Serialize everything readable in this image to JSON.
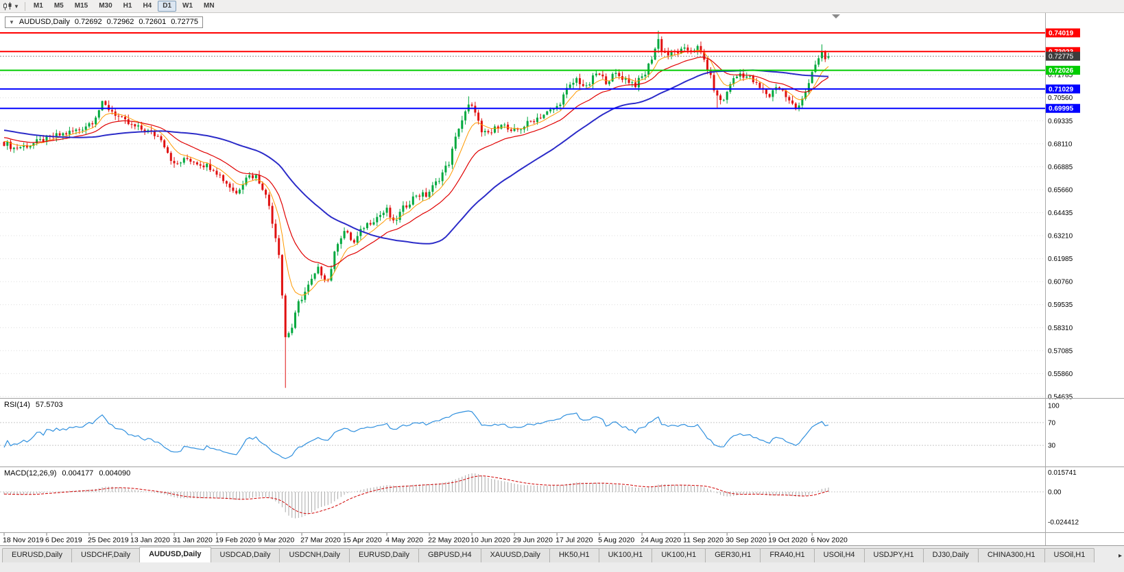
{
  "toolbar": {
    "timeframes": [
      "M1",
      "M5",
      "M15",
      "M30",
      "H1",
      "H4",
      "D1",
      "W1",
      "MN"
    ],
    "active_timeframe": "D1"
  },
  "chart_header": {
    "collapse_icon": "▼",
    "symbol": "AUDUSD,Daily",
    "open": "0.72692",
    "high": "0.72962",
    "low": "0.72601",
    "close": "0.72775"
  },
  "indicators": {
    "rsi": {
      "name": "RSI(14)",
      "value": "57.5703",
      "axis_values": [
        100,
        70,
        30
      ],
      "levels": {
        "upper": 70,
        "lower": 30
      },
      "color": "#2E8FDE"
    },
    "macd": {
      "name": "MACD(12,26,9)",
      "value_main": "0.004177",
      "value_signal": "0.004090",
      "axis_labels": [
        "0.015741",
        "0.00",
        "-0.024412"
      ],
      "axis_values": [
        0.015741,
        0,
        -0.024412
      ],
      "histogram_color": "#a8a8a8",
      "signal_color": "#d00000"
    }
  },
  "x_axis": {
    "bars_per_label": 13,
    "labels": [
      "18 Nov 2019",
      "6 Dec 2019",
      "25 Dec 2019",
      "13 Jan 2020",
      "31 Jan 2020",
      "19 Feb 2020",
      "9 Mar 2020",
      "27 Mar 2020",
      "15 Apr 2020",
      "4 May 2020",
      "22 May 2020",
      "10 Jun 2020",
      "29 Jun 2020",
      "17 Jul 2020",
      "5 Aug 2020",
      "24 Aug 2020",
      "11 Sep 2020",
      "30 Sep 2020",
      "19 Oct 2020",
      "6 Nov 2020"
    ]
  },
  "tabs": {
    "active_index": 2,
    "scroll_right_icon": "▸",
    "items": [
      "EURUSD,Daily",
      "USDCHF,Daily",
      "AUDUSD,Daily",
      "USDCAD,Daily",
      "USDCNH,Daily",
      "EURUSD,Daily",
      "GBPUSD,H4",
      "XAUUSD,Daily",
      "HK50,H1",
      "UK100,H1",
      "UK100,H1",
      "GER30,H1",
      "FRA40,H1",
      "USOil,H4",
      "USDJPY,H1",
      "DJ30,Daily",
      "CHINA300,H1",
      "USOil,H1"
    ]
  },
  "chart_data": {
    "type": "candlestick",
    "symbol": "AUDUSD",
    "period": "Daily",
    "visible_range": {
      "start": "18 Nov 2019",
      "end": "13 Nov 2020"
    },
    "bars": 253,
    "last_bar_ohlc": {
      "open": 0.72692,
      "high": 0.72962,
      "low": 0.72601,
      "close": 0.72775
    },
    "colors": {
      "up": "#00A83E",
      "down": "#E01010"
    },
    "current_price": {
      "price": 0.72775,
      "badge_color": "#3C3C3C"
    },
    "gridline_prices": [
      0.71785,
      0.7056,
      0.69335,
      0.6811,
      0.66885,
      0.6566,
      0.64435,
      0.6321,
      0.61985,
      0.6076,
      0.59535,
      0.5831,
      0.57085,
      0.5586,
      0.54635
    ],
    "horizontal_lines": [
      {
        "price": 0.74019,
        "color": "#FF0000"
      },
      {
        "price": 0.73023,
        "color": "#FF0000"
      },
      {
        "price": 0.72026,
        "color": "#00CC00"
      },
      {
        "price": 0.71029,
        "color": "#0000FF"
      },
      {
        "price": 0.69995,
        "color": "#0000FF"
      }
    ],
    "moving_averages": [
      {
        "type": "EMA",
        "period": 8,
        "color": "#FF9900",
        "width": 1
      },
      {
        "type": "EMA",
        "period": 21,
        "color": "#E00000",
        "width": 1.2
      },
      {
        "type": "SMA",
        "period": 50,
        "color": "#2B2BC8",
        "width": 2
      }
    ],
    "price_path_anchors": [
      [
        0,
        0.6817
      ],
      [
        3,
        0.6788
      ],
      [
        8,
        0.6806
      ],
      [
        13,
        0.6838
      ],
      [
        18,
        0.6862
      ],
      [
        23,
        0.6886
      ],
      [
        27,
        0.6932
      ],
      [
        30,
        0.7022
      ],
      [
        33,
        0.6986
      ],
      [
        36,
        0.6938
      ],
      [
        39,
        0.6906
      ],
      [
        44,
        0.6876
      ],
      [
        48,
        0.6842
      ],
      [
        52,
        0.6696
      ],
      [
        56,
        0.6731
      ],
      [
        60,
        0.6706
      ],
      [
        64,
        0.6681
      ],
      [
        67,
        0.6621
      ],
      [
        71,
        0.6546
      ],
      [
        74,
        0.6641
      ],
      [
        77,
        0.6638
      ],
      [
        79,
        0.6581
      ],
      [
        81,
        0.6482
      ],
      [
        84,
        0.6232
      ],
      [
        86,
        0.5781
      ],
      [
        88,
        0.5832
      ],
      [
        90,
        0.5961
      ],
      [
        93,
        0.6052
      ],
      [
        96,
        0.6141
      ],
      [
        99,
        0.6082
      ],
      [
        102,
        0.6291
      ],
      [
        104,
        0.6346
      ],
      [
        107,
        0.6282
      ],
      [
        110,
        0.6371
      ],
      [
        114,
        0.6421
      ],
      [
        117,
        0.6456
      ],
      [
        119,
        0.6386
      ],
      [
        122,
        0.6466
      ],
      [
        126,
        0.6541
      ],
      [
        129,
        0.6536
      ],
      [
        132,
        0.6601
      ],
      [
        136,
        0.6711
      ],
      [
        139,
        0.6901
      ],
      [
        142,
        0.7011
      ],
      [
        144,
        0.6991
      ],
      [
        146,
        0.6861
      ],
      [
        149,
        0.6871
      ],
      [
        152,
        0.6926
      ],
      [
        155,
        0.6866
      ],
      [
        158,
        0.6896
      ],
      [
        162,
        0.6941
      ],
      [
        166,
        0.6976
      ],
      [
        169,
        0.7006
      ],
      [
        172,
        0.7096
      ],
      [
        175,
        0.7156
      ],
      [
        178,
        0.7106
      ],
      [
        181,
        0.7186
      ],
      [
        184,
        0.7146
      ],
      [
        187,
        0.7181
      ],
      [
        190,
        0.7156
      ],
      [
        193,
        0.7126
      ],
      [
        196,
        0.7186
      ],
      [
        198,
        0.7271
      ],
      [
        200,
        0.7366
      ],
      [
        201,
        0.7311
      ],
      [
        203,
        0.7286
      ],
      [
        206,
        0.7301
      ],
      [
        209,
        0.7311
      ],
      [
        212,
        0.7321
      ],
      [
        214,
        0.7256
      ],
      [
        216,
        0.7161
      ],
      [
        218,
        0.7056
      ],
      [
        220,
        0.7041
      ],
      [
        222,
        0.7136
      ],
      [
        225,
        0.7186
      ],
      [
        228,
        0.7161
      ],
      [
        231,
        0.7106
      ],
      [
        234,
        0.7066
      ],
      [
        236,
        0.7121
      ],
      [
        238,
        0.7091
      ],
      [
        240,
        0.7036
      ],
      [
        242,
        0.7001
      ],
      [
        244,
        0.7056
      ],
      [
        246,
        0.7126
      ],
      [
        248,
        0.7231
      ],
      [
        250,
        0.7296
      ],
      [
        251,
        0.7261
      ],
      [
        252,
        0.7277
      ]
    ],
    "wick_overrides": {
      "30": {
        "high": 0.7041
      },
      "86": {
        "low": 0.551
      },
      "142": {
        "high": 0.7064
      },
      "200": {
        "high": 0.7414
      },
      "218": {
        "low": 0.7003
      },
      "242": {
        "low": 0.6989
      },
      "250": {
        "high": 0.7341
      }
    }
  }
}
